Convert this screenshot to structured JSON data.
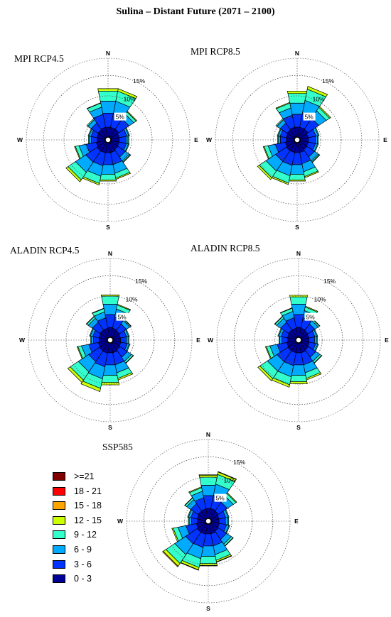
{
  "title": "Sulina – Distant Future (2071 – 2100)",
  "legend": {
    "items": [
      {
        "label": ">=21",
        "color": "#800000"
      },
      {
        "label": "18 - 21",
        "color": "#ff0000"
      },
      {
        "label": "15 - 18",
        "color": "#ffa500"
      },
      {
        "label": "12 - 15",
        "color": "#ccff00"
      },
      {
        "label": "9 - 12",
        "color": "#33ffcc"
      },
      {
        "label": "6 - 9",
        "color": "#00aaff"
      },
      {
        "label": "3 - 6",
        "color": "#0033ff"
      },
      {
        "label": "0 - 3",
        "color": "#000099"
      }
    ]
  },
  "chart_data": [
    {
      "type": "windrose",
      "title": "MPI RCP4.5",
      "directions": [
        "N",
        "NNE",
        "NE",
        "ENE",
        "E",
        "ESE",
        "SE",
        "SSE",
        "S",
        "SSW",
        "SW",
        "WSW",
        "W",
        "WNW",
        "NW",
        "NNW"
      ],
      "direction_labels": [
        "N",
        "E",
        "S",
        "W"
      ],
      "ring_labels": [
        "5%",
        "10%",
        "15%"
      ],
      "rings": [
        5,
        10,
        15
      ],
      "bins": [
        "0 - 3",
        "3 - 6",
        "6 - 9",
        "9 - 12",
        "12 - 15",
        "15 - 18",
        "18 - 21",
        ">=21"
      ],
      "frequencies": [
        [
          2.4,
          3.5,
          3.0,
          2.5,
          0.6,
          0.0,
          0.0,
          0.0
        ],
        [
          2.4,
          3.5,
          3.0,
          2.5,
          0.6,
          0.0,
          0.0,
          0.0
        ],
        [
          2.4,
          3.0,
          1.4,
          0.7,
          0.2,
          0.0,
          0.0,
          0.0
        ],
        [
          2.0,
          1.9,
          0.5,
          0.2,
          0.0,
          0.0,
          0.0,
          0.0
        ],
        [
          2.0,
          1.7,
          0.5,
          0.2,
          0.0,
          0.0,
          0.0,
          0.0
        ],
        [
          2.0,
          1.8,
          0.5,
          0.2,
          0.0,
          0.0,
          0.0,
          0.0
        ],
        [
          2.1,
          2.2,
          1.2,
          0.3,
          0.1,
          0.0,
          0.0,
          0.0
        ],
        [
          2.4,
          3.0,
          2.2,
          1.2,
          0.3,
          0.0,
          0.0,
          0.0
        ],
        [
          2.4,
          3.0,
          2.4,
          1.4,
          0.3,
          0.0,
          0.0,
          0.0
        ],
        [
          2.5,
          3.2,
          2.6,
          1.8,
          0.4,
          0.0,
          0.0,
          0.0
        ],
        [
          2.5,
          3.3,
          3.0,
          2.2,
          0.6,
          0.0,
          0.0,
          0.0
        ],
        [
          2.2,
          2.5,
          1.8,
          0.9,
          0.2,
          0.0,
          0.0,
          0.0
        ],
        [
          1.9,
          1.5,
          0.5,
          0.2,
          0.0,
          0.0,
          0.0,
          0.0
        ],
        [
          2.0,
          1.5,
          0.5,
          0.2,
          0.0,
          0.0,
          0.0,
          0.0
        ],
        [
          2.2,
          2.0,
          1.0,
          0.3,
          0.0,
          0.0,
          0.0,
          0.0
        ],
        [
          2.4,
          3.2,
          1.8,
          1.0,
          0.1,
          0.0,
          0.0,
          0.0
        ]
      ]
    },
    {
      "type": "windrose",
      "title": "MPI RCP8.5",
      "directions": [
        "N",
        "NNE",
        "NE",
        "ENE",
        "E",
        "ESE",
        "SE",
        "SSE",
        "S",
        "SSW",
        "SW",
        "WSW",
        "W",
        "WNW",
        "NW",
        "NNW"
      ],
      "direction_labels": [
        "N",
        "E",
        "S",
        "W"
      ],
      "ring_labels": [
        "5%",
        "10%",
        "15%"
      ],
      "rings": [
        5,
        10,
        15
      ],
      "bins": [
        "0 - 3",
        "3 - 6",
        "6 - 9",
        "9 - 12",
        "12 - 15",
        "15 - 18",
        "18 - 21",
        ">=21"
      ],
      "frequencies": [
        [
          2.4,
          3.2,
          2.8,
          2.4,
          0.6,
          0.0,
          0.0,
          0.0
        ],
        [
          2.4,
          3.5,
          3.2,
          2.8,
          0.7,
          0.0,
          0.0,
          0.0
        ],
        [
          2.4,
          3.2,
          2.2,
          1.0,
          0.3,
          0.0,
          0.0,
          0.0
        ],
        [
          2.0,
          1.9,
          0.6,
          0.2,
          0.0,
          0.0,
          0.0,
          0.0
        ],
        [
          2.0,
          1.8,
          0.5,
          0.2,
          0.0,
          0.0,
          0.0,
          0.0
        ],
        [
          2.0,
          1.8,
          0.5,
          0.2,
          0.0,
          0.0,
          0.0,
          0.0
        ],
        [
          2.1,
          2.2,
          1.2,
          0.3,
          0.1,
          0.0,
          0.0,
          0.0
        ],
        [
          2.4,
          2.8,
          2.0,
          1.2,
          0.3,
          0.0,
          0.0,
          0.0
        ],
        [
          2.4,
          3.0,
          2.4,
          1.4,
          0.3,
          0.0,
          0.0,
          0.0
        ],
        [
          2.4,
          3.2,
          2.6,
          1.8,
          0.4,
          0.0,
          0.0,
          0.0
        ],
        [
          2.4,
          3.2,
          2.8,
          2.0,
          0.5,
          0.0,
          0.0,
          0.0
        ],
        [
          2.2,
          2.5,
          1.8,
          1.0,
          0.2,
          0.0,
          0.0,
          0.0
        ],
        [
          1.9,
          1.5,
          0.5,
          0.2,
          0.0,
          0.0,
          0.0,
          0.0
        ],
        [
          2.0,
          1.5,
          0.5,
          0.2,
          0.0,
          0.0,
          0.0,
          0.0
        ],
        [
          2.2,
          2.0,
          1.0,
          0.3,
          0.0,
          0.0,
          0.0,
          0.0
        ],
        [
          2.4,
          3.0,
          1.8,
          1.2,
          0.2,
          0.0,
          0.0,
          0.0
        ]
      ]
    },
    {
      "type": "windrose",
      "title": "ALADIN RCP4.5",
      "directions": [
        "N",
        "NNE",
        "NE",
        "ENE",
        "E",
        "ESE",
        "SE",
        "SSE",
        "S",
        "SSW",
        "SW",
        "WSW",
        "W",
        "WNW",
        "NW",
        "NNW"
      ],
      "direction_labels": [
        "N",
        "E",
        "S",
        "W"
      ],
      "ring_labels": [
        "5%",
        "10%",
        "15%"
      ],
      "rings": [
        5,
        10,
        15
      ],
      "bins": [
        "0 - 3",
        "3 - 6",
        "6 - 9",
        "9 - 12",
        "12 - 15",
        "15 - 18",
        "18 - 21",
        ">=21"
      ],
      "frequencies": [
        [
          2.4,
          3.2,
          2.6,
          2.0,
          0.3,
          0.0,
          0.0,
          0.0
        ],
        [
          2.2,
          2.8,
          2.0,
          1.0,
          0.2,
          0.0,
          0.0,
          0.0
        ],
        [
          2.0,
          2.0,
          1.0,
          0.3,
          0.1,
          0.0,
          0.0,
          0.0
        ],
        [
          1.8,
          1.5,
          0.5,
          0.2,
          0.0,
          0.0,
          0.0,
          0.0
        ],
        [
          1.8,
          1.4,
          0.5,
          0.2,
          0.0,
          0.0,
          0.0,
          0.0
        ],
        [
          1.9,
          1.6,
          0.5,
          0.2,
          0.0,
          0.0,
          0.0,
          0.0
        ],
        [
          2.1,
          2.2,
          1.2,
          0.5,
          0.1,
          0.0,
          0.0,
          0.0
        ],
        [
          2.4,
          3.0,
          2.0,
          1.4,
          0.4,
          0.0,
          0.0,
          0.0
        ],
        [
          2.4,
          3.0,
          2.6,
          1.8,
          0.6,
          0.0,
          0.0,
          0.0
        ],
        [
          2.5,
          3.4,
          3.0,
          2.4,
          0.8,
          0.0,
          0.0,
          0.0
        ],
        [
          2.4,
          3.2,
          3.0,
          2.4,
          0.7,
          0.0,
          0.0,
          0.0
        ],
        [
          2.2,
          2.4,
          1.8,
          0.9,
          0.2,
          0.0,
          0.0,
          0.0
        ],
        [
          1.9,
          1.5,
          0.5,
          0.2,
          0.0,
          0.0,
          0.0,
          0.0
        ],
        [
          2.0,
          1.6,
          0.6,
          0.2,
          0.0,
          0.0,
          0.0,
          0.0
        ],
        [
          2.2,
          2.3,
          1.2,
          0.5,
          0.1,
          0.0,
          0.0,
          0.0
        ],
        [
          2.2,
          2.6,
          1.5,
          0.8,
          0.1,
          0.0,
          0.0,
          0.0
        ]
      ]
    },
    {
      "type": "windrose",
      "title": "ALADIN RCP8.5",
      "directions": [
        "N",
        "NNE",
        "NE",
        "ENE",
        "E",
        "ESE",
        "SE",
        "SSE",
        "S",
        "SSW",
        "SW",
        "WSW",
        "W",
        "WNW",
        "NW",
        "NNW"
      ],
      "direction_labels": [
        "N",
        "E",
        "S",
        "W"
      ],
      "ring_labels": [
        "5%",
        "10%",
        "15%"
      ],
      "rings": [
        5,
        10,
        15
      ],
      "bins": [
        "0 - 3",
        "3 - 6",
        "6 - 9",
        "9 - 12",
        "12 - 15",
        "15 - 18",
        "18 - 21",
        ">=21"
      ],
      "frequencies": [
        [
          2.4,
          3.2,
          2.6,
          1.8,
          0.4,
          0.0,
          0.0,
          0.0
        ],
        [
          2.2,
          2.6,
          1.8,
          0.9,
          0.2,
          0.0,
          0.0,
          0.0
        ],
        [
          2.0,
          2.0,
          1.0,
          0.4,
          0.1,
          0.0,
          0.0,
          0.0
        ],
        [
          1.8,
          1.5,
          0.5,
          0.2,
          0.0,
          0.0,
          0.0,
          0.0
        ],
        [
          1.8,
          1.4,
          0.5,
          0.2,
          0.0,
          0.0,
          0.0,
          0.0
        ],
        [
          1.9,
          1.6,
          0.5,
          0.2,
          0.0,
          0.0,
          0.0,
          0.0
        ],
        [
          2.1,
          2.2,
          1.2,
          0.5,
          0.1,
          0.0,
          0.0,
          0.0
        ],
        [
          2.4,
          3.0,
          2.0,
          1.4,
          0.4,
          0.0,
          0.0,
          0.0
        ],
        [
          2.4,
          3.0,
          2.6,
          1.6,
          0.5,
          0.0,
          0.0,
          0.0
        ],
        [
          2.4,
          3.2,
          2.8,
          2.0,
          0.6,
          0.0,
          0.0,
          0.0
        ],
        [
          2.4,
          3.2,
          2.8,
          2.2,
          0.6,
          0.0,
          0.0,
          0.0
        ],
        [
          2.2,
          2.4,
          1.8,
          0.9,
          0.2,
          0.0,
          0.0,
          0.0
        ],
        [
          1.9,
          1.5,
          0.5,
          0.2,
          0.0,
          0.0,
          0.0,
          0.0
        ],
        [
          2.0,
          1.6,
          0.6,
          0.2,
          0.0,
          0.0,
          0.0,
          0.0
        ],
        [
          2.2,
          2.3,
          1.2,
          0.5,
          0.1,
          0.0,
          0.0,
          0.0
        ],
        [
          2.2,
          2.6,
          1.6,
          0.8,
          0.1,
          0.0,
          0.0,
          0.0
        ]
      ]
    },
    {
      "type": "windrose",
      "title": "SSP585",
      "directions": [
        "N",
        "NNE",
        "NE",
        "ENE",
        "E",
        "ESE",
        "SE",
        "SSE",
        "S",
        "SSW",
        "SW",
        "WSW",
        "W",
        "WNW",
        "NW",
        "NNW"
      ],
      "direction_labels": [
        "N",
        "E",
        "S",
        "W"
      ],
      "ring_labels": [
        "5%",
        "10%",
        "15%"
      ],
      "rings": [
        5,
        10,
        15
      ],
      "bins": [
        "0 - 3",
        "3 - 6",
        "6 - 9",
        "9 - 12",
        "12 - 15",
        "15 - 18",
        "18 - 21",
        ">=21"
      ],
      "frequencies": [
        [
          2.4,
          3.2,
          2.6,
          2.0,
          0.5,
          0.1,
          0.0,
          0.0
        ],
        [
          2.4,
          3.3,
          2.8,
          2.4,
          0.6,
          0.1,
          0.0,
          0.0
        ],
        [
          2.2,
          2.6,
          1.8,
          0.8,
          0.2,
          0.0,
          0.0,
          0.0
        ],
        [
          1.9,
          1.7,
          0.6,
          0.2,
          0.0,
          0.0,
          0.0,
          0.0
        ],
        [
          1.9,
          1.6,
          0.6,
          0.2,
          0.0,
          0.0,
          0.0,
          0.0
        ],
        [
          2.0,
          1.8,
          0.6,
          0.2,
          0.0,
          0.0,
          0.0,
          0.0
        ],
        [
          2.2,
          2.4,
          1.4,
          0.5,
          0.1,
          0.0,
          0.0,
          0.0
        ],
        [
          2.4,
          3.0,
          2.2,
          1.4,
          0.4,
          0.1,
          0.0,
          0.0
        ],
        [
          2.4,
          3.0,
          2.6,
          1.8,
          0.5,
          0.1,
          0.0,
          0.0
        ],
        [
          2.5,
          3.3,
          2.8,
          2.2,
          0.6,
          0.1,
          0.0,
          0.0
        ],
        [
          2.5,
          3.4,
          3.2,
          2.6,
          0.8,
          0.2,
          0.0,
          0.0
        ],
        [
          2.2,
          2.6,
          2.0,
          1.2,
          0.3,
          0.0,
          0.0,
          0.0
        ],
        [
          1.9,
          1.5,
          0.6,
          0.2,
          0.0,
          0.0,
          0.0,
          0.0
        ],
        [
          2.0,
          1.6,
          0.6,
          0.2,
          0.0,
          0.0,
          0.0,
          0.0
        ],
        [
          2.2,
          2.2,
          1.2,
          0.5,
          0.1,
          0.0,
          0.0,
          0.0
        ],
        [
          2.3,
          2.8,
          1.6,
          0.9,
          0.2,
          0.0,
          0.0,
          0.0
        ]
      ]
    }
  ]
}
